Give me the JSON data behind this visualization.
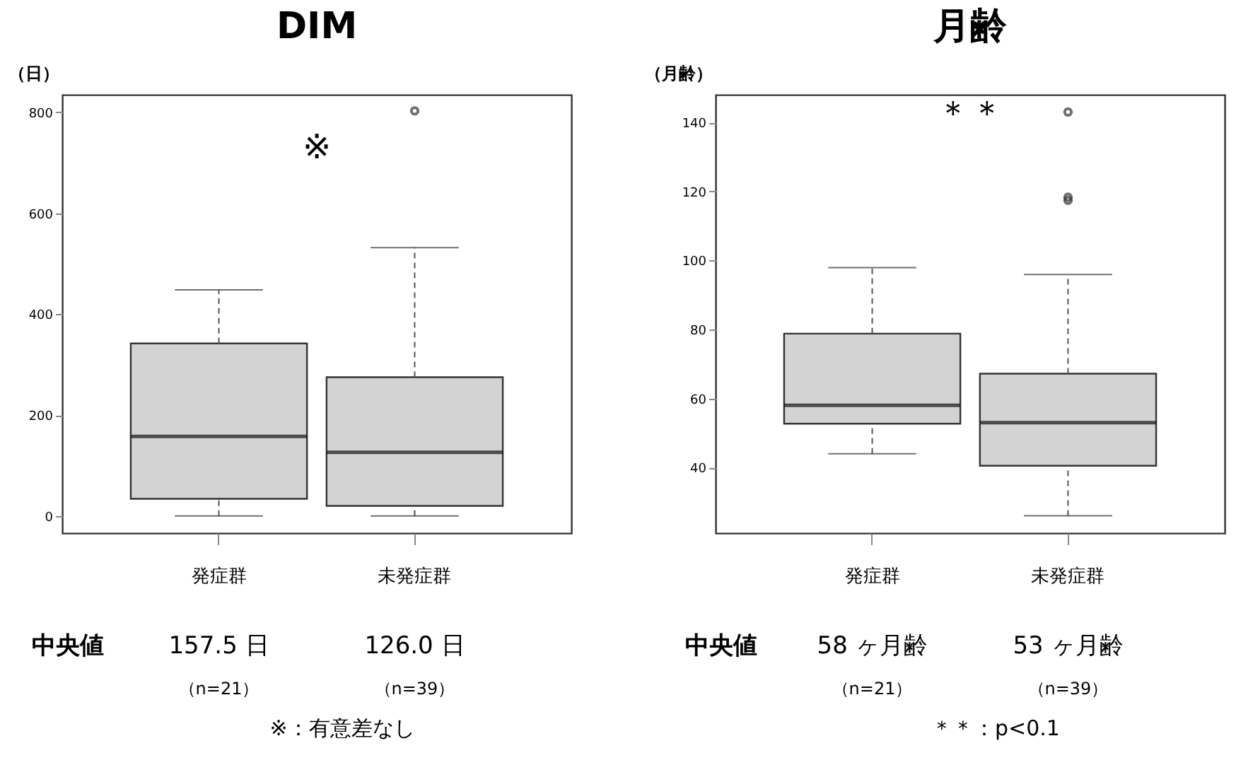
{
  "chart_data": [
    {
      "type": "box",
      "title": "DIM",
      "ylabel": "（日）",
      "categories": [
        "発症群",
        "未発症群"
      ],
      "boxes": [
        {
          "low": 0,
          "q1": 34,
          "median": 157.5,
          "q3": 342,
          "high": 448
        },
        {
          "low": 0,
          "q1": 20,
          "median": 126,
          "q3": 275,
          "high": 532,
          "outliers": [
            803
          ]
        }
      ],
      "ylim": [
        -34,
        835
      ],
      "yticks": [
        0,
        200,
        400,
        600,
        800
      ],
      "annotations": [
        "※",
        "中央値",
        "157.5 日",
        "126.0 日",
        "（n=21）",
        "（n=39）",
        "※：有意差なし"
      ]
    },
    {
      "type": "box",
      "title": "月齢",
      "ylabel": "（月齢）",
      "categories": [
        "発症群",
        "未発症群"
      ],
      "boxes": [
        {
          "low": 44,
          "q1": 52.7,
          "median": 58,
          "q3": 78.8,
          "high": 97.9
        },
        {
          "low": 26,
          "q1": 40.5,
          "median": 53,
          "q3": 67.2,
          "high": 95.9,
          "outliers": [
            117.4,
            118.3,
            143
          ]
        }
      ],
      "ylim": [
        21,
        148
      ],
      "yticks": [
        40,
        60,
        80,
        100,
        120,
        140
      ],
      "annotations": [
        "＊＊",
        "中央値",
        "58 ヶ月齢",
        "53 ヶ月齢",
        "（n=21）",
        "（n=39）",
        "＊＊：p<0.1"
      ]
    }
  ]
}
